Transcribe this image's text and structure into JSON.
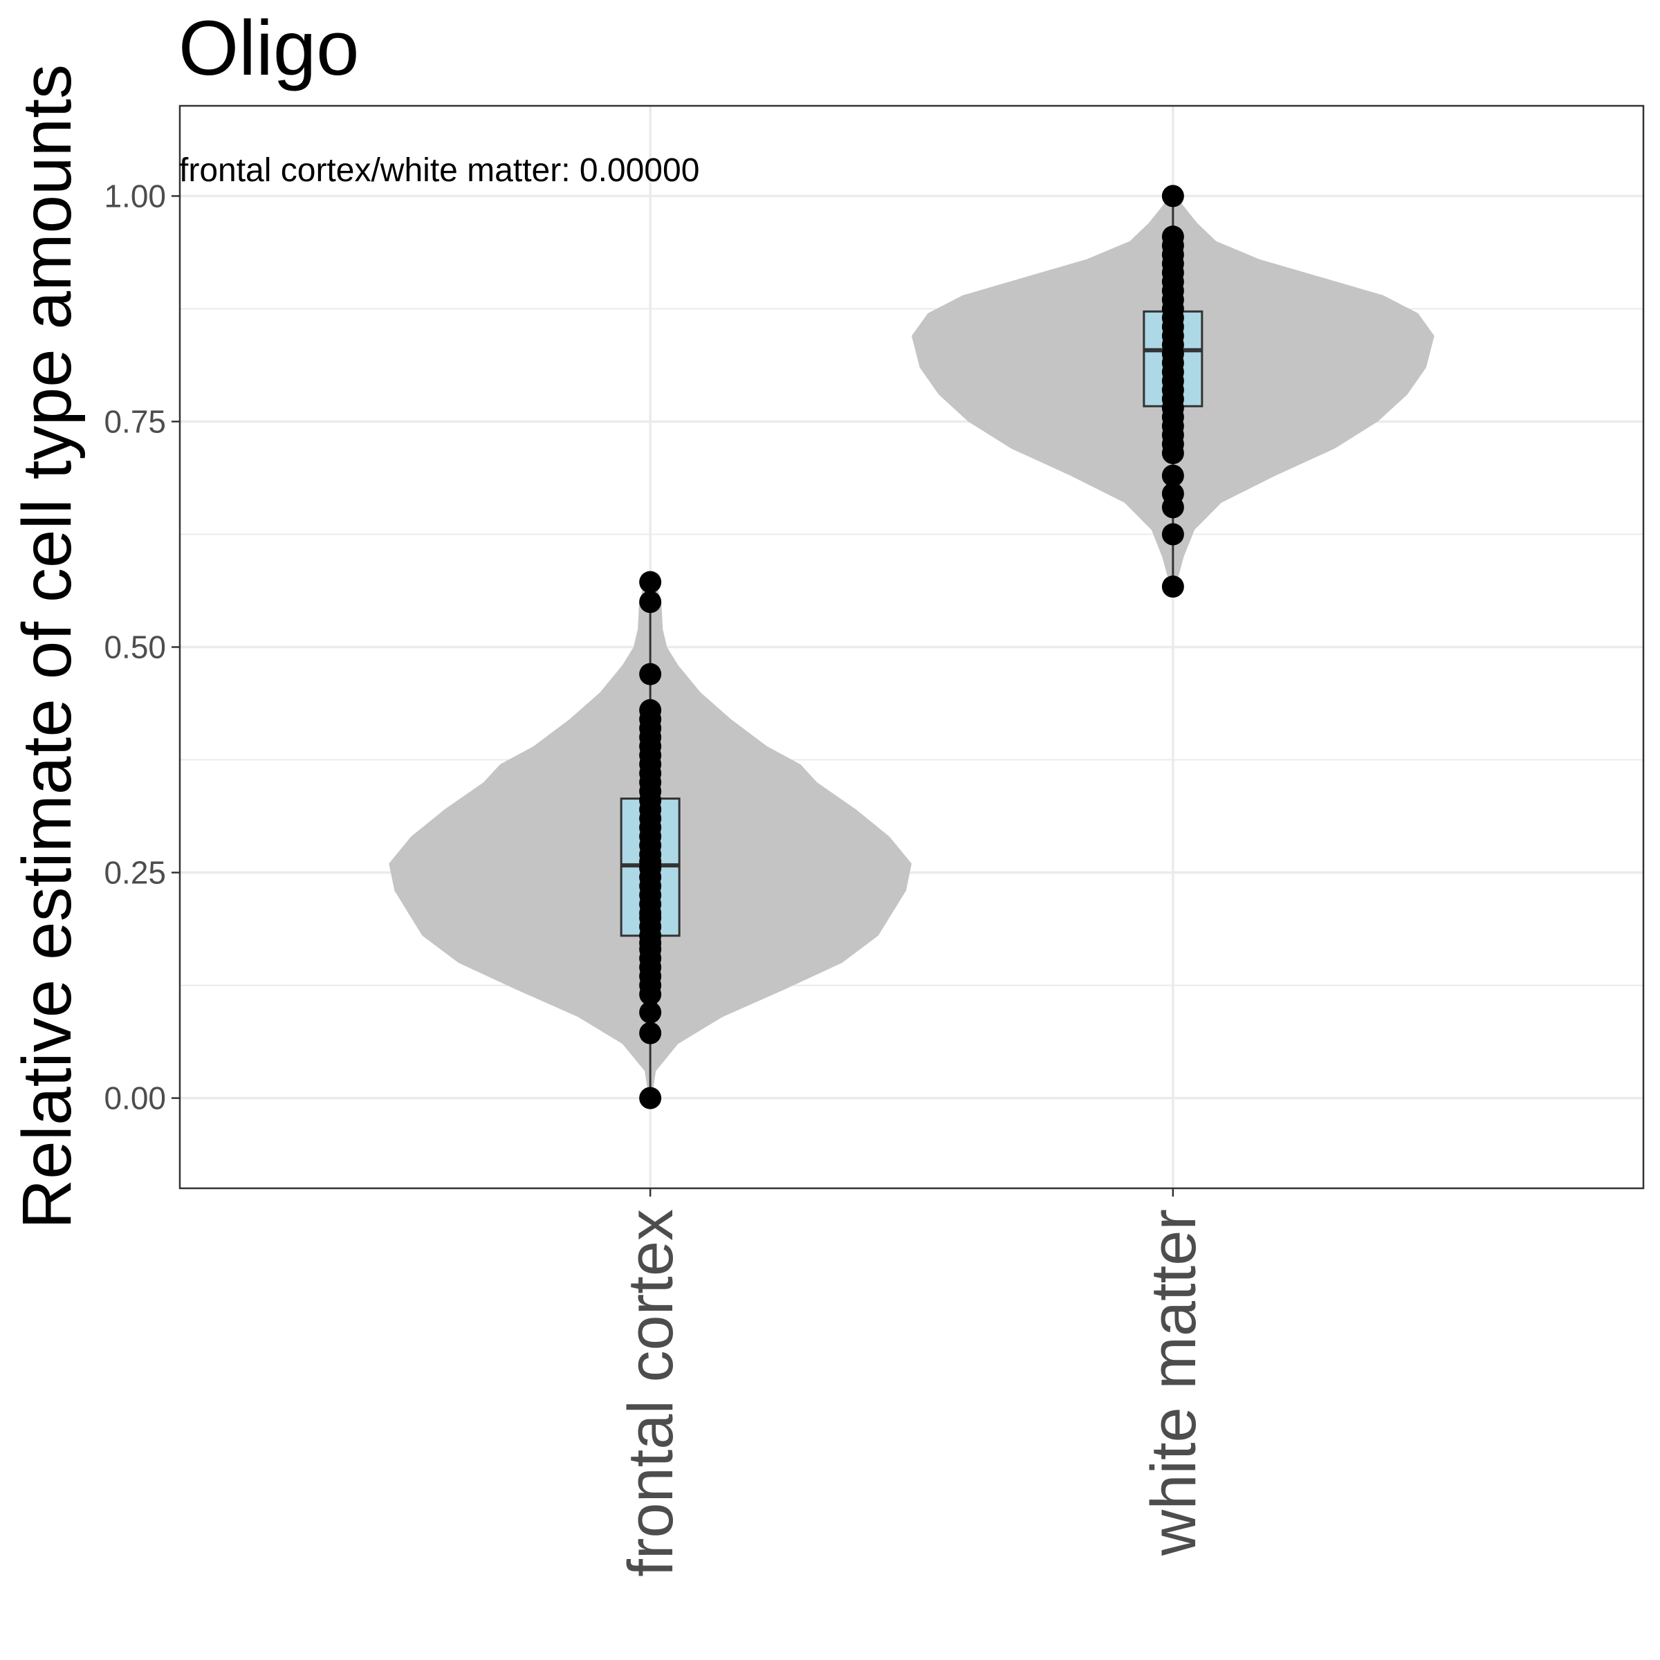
{
  "chart_data": {
    "type": "violin",
    "title": "Oligo",
    "ylabel": "Relative estimate of cell type amounts",
    "xlabel": "",
    "ylim": [
      -0.1,
      1.1
    ],
    "y_ticks": [
      0.0,
      0.25,
      0.5,
      0.75,
      1.0
    ],
    "y_tick_labels": [
      "0.00",
      "0.25",
      "0.50",
      "0.75",
      "1.00"
    ],
    "grid": true,
    "annotation": "frontal cortex/white matter: 0.00000",
    "colors": {
      "violin": "#c4c4c4",
      "box": "#add8e6",
      "points": "#000000",
      "grid": "#ebebeb"
    },
    "categories": [
      "frontal cortex",
      "white matter"
    ],
    "groups": [
      {
        "name": "frontal cortex",
        "box": {
          "min": 0.0,
          "q1": 0.18,
          "median": 0.258,
          "q3": 0.332,
          "max": 0.572
        },
        "density": [
          [
            0.0,
            0.005
          ],
          [
            0.03,
            0.02
          ],
          [
            0.06,
            0.1
          ],
          [
            0.09,
            0.26
          ],
          [
            0.12,
            0.48
          ],
          [
            0.15,
            0.69
          ],
          [
            0.18,
            0.82
          ],
          [
            0.2,
            0.86
          ],
          [
            0.23,
            0.92
          ],
          [
            0.26,
            0.94
          ],
          [
            0.29,
            0.86
          ],
          [
            0.32,
            0.74
          ],
          [
            0.35,
            0.6
          ],
          [
            0.37,
            0.54
          ],
          [
            0.39,
            0.42
          ],
          [
            0.42,
            0.29
          ],
          [
            0.45,
            0.18
          ],
          [
            0.48,
            0.1
          ],
          [
            0.5,
            0.06
          ],
          [
            0.52,
            0.045
          ],
          [
            0.55,
            0.04
          ],
          [
            0.572,
            0.02
          ]
        ],
        "points": [
          0.0,
          0.072,
          0.095,
          0.115,
          0.125,
          0.135,
          0.145,
          0.155,
          0.165,
          0.172,
          0.18,
          0.19,
          0.2,
          0.205,
          0.215,
          0.225,
          0.235,
          0.245,
          0.255,
          0.262,
          0.27,
          0.28,
          0.29,
          0.3,
          0.31,
          0.32,
          0.33,
          0.34,
          0.35,
          0.36,
          0.37,
          0.38,
          0.39,
          0.4,
          0.41,
          0.42,
          0.43,
          0.47,
          0.55,
          0.572
        ]
      },
      {
        "name": "white matter",
        "box": {
          "min": 0.567,
          "q1": 0.767,
          "median": 0.829,
          "q3": 0.872,
          "max": 1.0
        },
        "density": [
          [
            0.567,
            0.01
          ],
          [
            0.6,
            0.04
          ],
          [
            0.63,
            0.08
          ],
          [
            0.66,
            0.18
          ],
          [
            0.69,
            0.38
          ],
          [
            0.72,
            0.6
          ],
          [
            0.75,
            0.76
          ],
          [
            0.78,
            0.87
          ],
          [
            0.81,
            0.94
          ],
          [
            0.845,
            0.97
          ],
          [
            0.87,
            0.91
          ],
          [
            0.89,
            0.78
          ],
          [
            0.91,
            0.55
          ],
          [
            0.93,
            0.32
          ],
          [
            0.95,
            0.16
          ],
          [
            0.97,
            0.09
          ],
          [
            0.985,
            0.05
          ],
          [
            1.0,
            0.01
          ]
        ],
        "points": [
          0.567,
          0.625,
          0.655,
          0.67,
          0.69,
          0.715,
          0.725,
          0.735,
          0.745,
          0.755,
          0.765,
          0.775,
          0.785,
          0.795,
          0.805,
          0.815,
          0.825,
          0.835,
          0.845,
          0.855,
          0.865,
          0.875,
          0.885,
          0.895,
          0.905,
          0.915,
          0.925,
          0.935,
          0.945,
          0.955,
          1.0
        ]
      }
    ]
  }
}
